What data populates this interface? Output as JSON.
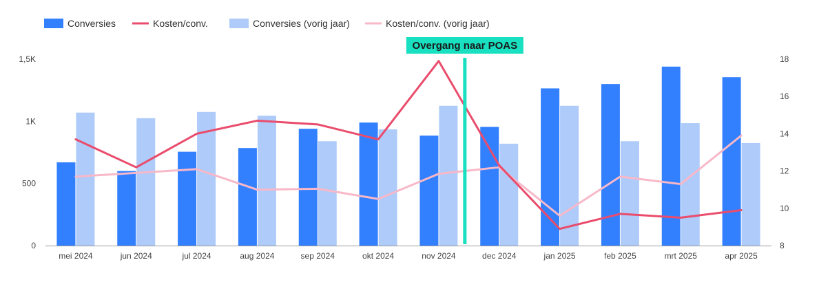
{
  "chart_data": {
    "type": "bar",
    "categories": [
      "mei 2024",
      "jun 2024",
      "jul 2024",
      "aug 2024",
      "sep 2024",
      "okt 2024",
      "nov 2024",
      "dec 2024",
      "jan 2025",
      "feb 2025",
      "mrt 2025",
      "apr 2025"
    ],
    "series": [
      {
        "name": "Conversies",
        "type": "bar",
        "axis": "left",
        "color": "#3380ff",
        "values": [
          670,
          600,
          755,
          785,
          940,
          990,
          885,
          955,
          1265,
          1300,
          1440,
          1355
        ]
      },
      {
        "name": "Kosten/conv.",
        "type": "line",
        "axis": "right",
        "color": "#ea4c6c",
        "values": [
          13.7,
          12.2,
          14.0,
          14.7,
          14.5,
          13.7,
          17.9,
          12.3,
          8.9,
          9.7,
          9.5,
          9.9
        ]
      },
      {
        "name": "Conversies (vorig jaar)",
        "type": "bar",
        "axis": "left",
        "color": "#aecbfa",
        "values": [
          1070,
          1025,
          1075,
          1045,
          840,
          935,
          1125,
          820,
          1125,
          840,
          985,
          825
        ]
      },
      {
        "name": "Kosten/conv. (vorig jaar)",
        "type": "line",
        "axis": "right",
        "color": "#f8b8c8",
        "values": [
          11.7,
          11.9,
          12.1,
          11.0,
          11.05,
          10.5,
          11.85,
          12.2,
          9.6,
          11.7,
          11.3,
          13.9
        ]
      }
    ],
    "y_left": {
      "min": 0,
      "max": 1500,
      "ticks": [
        0,
        500,
        1000,
        1500
      ],
      "tick_labels": [
        "0",
        "500",
        "1K",
        "1,5K"
      ]
    },
    "y_right": {
      "min": 8,
      "max": 18,
      "ticks": [
        8,
        10,
        12,
        14,
        16,
        18
      ],
      "tick_labels": [
        "8",
        "10",
        "12",
        "14",
        "16",
        "18"
      ]
    },
    "annotation": {
      "label": "Overgang naar POAS",
      "position": "between nov 2024 and dec 2024",
      "color": "#18e0c0"
    },
    "legend_placement": "top-left",
    "grid": false,
    "title": "",
    "xlabel": "",
    "ylabel": ""
  }
}
